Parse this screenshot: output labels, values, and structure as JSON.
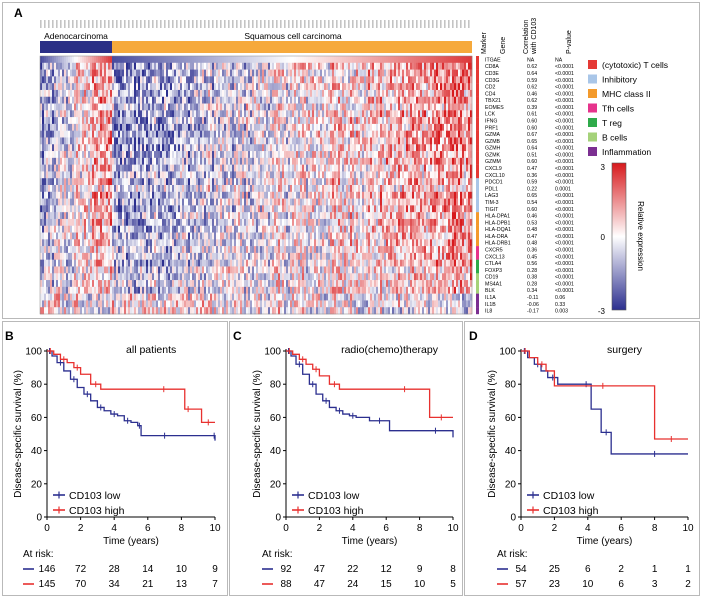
{
  "panel_labels": {
    "a": "A",
    "b": "B",
    "c": "C",
    "d": "D"
  },
  "heatmap": {
    "group_labels": {
      "adeno": "Adenocarcinoma",
      "squamous": "Squamous cell carcinoma"
    },
    "column_headers": {
      "marker": "Marker",
      "gene": "Gene",
      "correlation": "Correlation with CD103",
      "pvalue": "P-value"
    },
    "genes": [
      "ITGAE",
      "CD8A",
      "CD3E",
      "CD3G",
      "CD2",
      "CD4",
      "TBX21",
      "EOMES",
      "LCK",
      "IFNG",
      "PRF1",
      "GZMA",
      "GZMB",
      "GZMH",
      "GZMK",
      "GZMM",
      "CXCL9",
      "CXCL10",
      "PDCD1",
      "PDL1",
      "LAG3",
      "TIM-3",
      "TIGIT",
      "HLA-DPA1",
      "HLA-DPB1",
      "HLA-DQA1",
      "HLA-DRA",
      "HLA-DRB1",
      "CXCR5",
      "CXCL13",
      "CTLA4",
      "FOXP3",
      "CD19",
      "MS4A1",
      "BLK",
      "IL1A",
      "IL1B",
      "IL8"
    ],
    "correlations": [
      "NA",
      "0.62",
      "0.64",
      "0.59",
      "0.62",
      "0.46",
      "0.62",
      "0.39",
      "0.61",
      "0.60",
      "0.60",
      "0.67",
      "0.65",
      "0.64",
      "0.51",
      "0.60",
      "0.47",
      "0.36",
      "0.59",
      "0.22",
      "0.65",
      "0.54",
      "0.60",
      "0.46",
      "0.53",
      "0.48",
      "0.47",
      "0.48",
      "0.36",
      "0.45",
      "0.56",
      "0.28",
      "0.38",
      "0.28",
      "0.34",
      "-0.11",
      "-0.06",
      "-0.17"
    ],
    "pvalues": [
      "NA",
      "<0.0001",
      "<0.0001",
      "<0.0001",
      "<0.0001",
      "<0.0001",
      "<0.0001",
      "<0.0001",
      "<0.0001",
      "<0.0001",
      "<0.0001",
      "<0.0001",
      "<0.0001",
      "<0.0001",
      "<0.0001",
      "<0.0001",
      "<0.0001",
      "<0.0001",
      "<0.0001",
      "0.0001",
      "<0.0001",
      "<0.0001",
      "<0.0001",
      "<0.0001",
      "<0.0001",
      "<0.0001",
      "<0.0001",
      "<0.0001",
      "<0.0001",
      "<0.0001",
      "<0.0001",
      "<0.0001",
      "<0.0001",
      "<0.0001",
      "<0.0001",
      "0.06",
      "0.33",
      "0.003"
    ],
    "marker_categories": [
      "cytotoxic",
      "cytotoxic",
      "cytotoxic",
      "cytotoxic",
      "cytotoxic",
      "cytotoxic",
      "cytotoxic",
      "cytotoxic",
      "cytotoxic",
      "cytotoxic",
      "cytotoxic",
      "cytotoxic",
      "cytotoxic",
      "cytotoxic",
      "cytotoxic",
      "cytotoxic",
      "cytotoxic",
      "cytotoxic",
      "inhibitory",
      "inhibitory",
      "inhibitory",
      "inhibitory",
      "inhibitory",
      "mhc",
      "mhc",
      "mhc",
      "mhc",
      "mhc",
      "tfh",
      "tfh",
      "treg",
      "treg",
      "bcells",
      "bcells",
      "bcells",
      "inflammation",
      "inflammation",
      "inflammation"
    ],
    "legend": [
      {
        "key": "cytotoxic",
        "label": "(cytotoxic) T cells",
        "color": "#e53935"
      },
      {
        "key": "inhibitory",
        "label": "Inhibitory",
        "color": "#a9c6e8"
      },
      {
        "key": "mhc",
        "label": "MHC class  II",
        "color": "#f39a2c"
      },
      {
        "key": "tfh",
        "label": "Tfh cells",
        "color": "#e6338c"
      },
      {
        "key": "treg",
        "label": "T reg",
        "color": "#2eaa4a"
      },
      {
        "key": "bcells",
        "label": "B cells",
        "color": "#a5d27a"
      },
      {
        "key": "inflammation",
        "label": "Inflammation",
        "color": "#7b2f91"
      }
    ],
    "colorbar": {
      "max_label": "3",
      "mid_label": "0",
      "min_label": "-3",
      "title": "Relative expression",
      "high_color": "#d7191c",
      "mid_color": "#ffffff",
      "low_color": "#2c2f8f"
    },
    "group_colors": {
      "adeno": "#2b2f86",
      "squamous": "#f6a93b"
    }
  },
  "chart_data": [
    {
      "type": "line",
      "panel": "B",
      "title": "all patients",
      "xlabel": "Time (years)",
      "ylabel": "Disease-specific survival (%)",
      "xlim": [
        0,
        10
      ],
      "ylim": [
        0,
        100
      ],
      "xticks": [
        "0",
        "2",
        "4",
        "6",
        "8",
        "10"
      ],
      "yticks": [
        "0",
        "20",
        "40",
        "60",
        "80",
        "100"
      ],
      "series": [
        {
          "name": "CD103 low",
          "color": "#2b2f8f",
          "x": [
            0,
            0.3,
            0.6,
            1.0,
            1.4,
            1.8,
            2.2,
            2.6,
            3.0,
            3.4,
            3.8,
            4.2,
            4.6,
            5.0,
            5.4,
            5.6,
            6.0,
            8.0,
            9.9,
            10.0
          ],
          "y": [
            100,
            97,
            93,
            88,
            83,
            78,
            74,
            70,
            66,
            64,
            62,
            61,
            58,
            57,
            55,
            49,
            49,
            49,
            49,
            46
          ]
        },
        {
          "name": "CD103 high",
          "color": "#e8312f",
          "x": [
            0,
            0.4,
            0.8,
            1.2,
            1.6,
            2.0,
            2.6,
            3.2,
            6.0,
            7.9,
            8.2,
            8.6,
            9.2,
            10.0
          ],
          "y": [
            100,
            98,
            95,
            93,
            90,
            86,
            80,
            77,
            77,
            77,
            65,
            65,
            57,
            57
          ]
        }
      ],
      "at_risk": {
        "label": "At risk:",
        "low": [
          "146",
          "72",
          "28",
          "14",
          "10",
          "9"
        ],
        "high": [
          "145",
          "70",
          "34",
          "21",
          "13",
          "7"
        ]
      }
    },
    {
      "type": "line",
      "panel": "C",
      "title": "radio(chemo)therapy",
      "xlabel": "Time (years)",
      "ylabel": "Disease-specific survival (%)",
      "xlim": [
        0,
        10
      ],
      "ylim": [
        0,
        100
      ],
      "xticks": [
        "0",
        "2",
        "4",
        "6",
        "8",
        "10"
      ],
      "yticks": [
        "0",
        "20",
        "40",
        "60",
        "80",
        "100"
      ],
      "series": [
        {
          "name": "CD103 low",
          "color": "#2b2f8f",
          "x": [
            0,
            0.3,
            0.6,
            1.0,
            1.4,
            1.8,
            2.2,
            2.6,
            3.0,
            3.4,
            3.8,
            4.2,
            5.0,
            6.2,
            8.0,
            9.9,
            10.0
          ],
          "y": [
            100,
            97,
            92,
            86,
            80,
            74,
            70,
            66,
            64,
            62,
            61,
            60,
            58,
            52,
            52,
            52,
            48
          ]
        },
        {
          "name": "CD103 high",
          "color": "#e8312f",
          "x": [
            0,
            0.4,
            0.8,
            1.2,
            1.6,
            2.0,
            2.6,
            3.2,
            6.0,
            8.2,
            8.6,
            10.0
          ],
          "y": [
            100,
            98,
            95,
            92,
            89,
            85,
            80,
            77,
            77,
            77,
            60,
            60
          ]
        }
      ],
      "at_risk": {
        "label": "At risk:",
        "low": [
          "92",
          "47",
          "22",
          "12",
          "9",
          "8"
        ],
        "high": [
          "88",
          "47",
          "24",
          "15",
          "10",
          "5"
        ]
      }
    },
    {
      "type": "line",
      "panel": "D",
      "title": "surgery",
      "xlabel": "Time (years)",
      "ylabel": "Disease-specific survival (%)",
      "xlim": [
        0,
        10
      ],
      "ylim": [
        0,
        100
      ],
      "xticks": [
        "0",
        "2",
        "4",
        "6",
        "8",
        "10"
      ],
      "yticks": [
        "0",
        "20",
        "40",
        "60",
        "80",
        "100"
      ],
      "series": [
        {
          "name": "CD103 low",
          "color": "#2b2f8f",
          "x": [
            0,
            0.4,
            0.8,
            1.2,
            1.6,
            2.2,
            3.6,
            4.2,
            4.8,
            5.4,
            6.0,
            10.0
          ],
          "y": [
            100,
            96,
            92,
            88,
            84,
            80,
            80,
            65,
            51,
            38,
            38,
            38
          ]
        },
        {
          "name": "CD103 high",
          "color": "#e8312f",
          "x": [
            0,
            0.5,
            1.0,
            1.5,
            2.0,
            7.8,
            8.0,
            10.0
          ],
          "y": [
            100,
            96,
            92,
            88,
            79,
            79,
            47,
            47
          ]
        }
      ],
      "at_risk": {
        "label": "At risk:",
        "low": [
          "54",
          "25",
          "6",
          "2",
          "1",
          "1"
        ],
        "high": [
          "57",
          "23",
          "10",
          "6",
          "3",
          "2"
        ]
      }
    }
  ]
}
